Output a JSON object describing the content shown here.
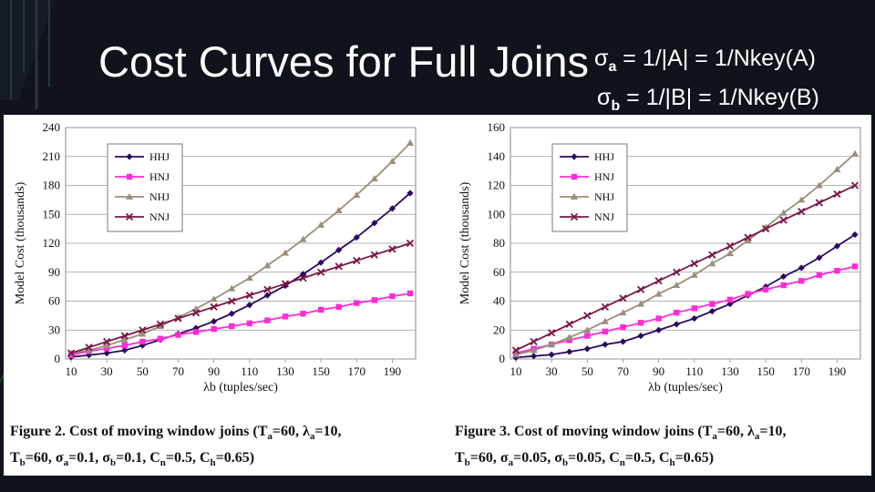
{
  "slide": {
    "title": "Cost Curves for Full Joins",
    "formula_a": {
      "sigma": "σ",
      "sub": "a",
      "rest": " = 1/|A| = 1/Nkey(A)"
    },
    "formula_b": {
      "sigma": "σ",
      "sub": "b",
      "rest": " = 1/|B| = 1/Nkey(B)"
    }
  },
  "figures": [
    {
      "caption_line1": "Figure 2. Cost of moving window joins (T",
      "caption_parts": [
        "a",
        "=60, λ",
        "a",
        "=10,"
      ],
      "caption_line2_parts": [
        "T",
        "b",
        "=60, σ",
        "a",
        "=0.1, σ",
        "b",
        "=0.1, C",
        "n",
        "=0.5, C",
        "h",
        "=0.65)"
      ]
    },
    {
      "caption_line1": "Figure 3. Cost of moving window joins (T",
      "caption_parts": [
        "a",
        "=60, λ",
        "a",
        "=10,"
      ],
      "caption_line2_parts": [
        "T",
        "b",
        "=60, σ",
        "a",
        "=0.05, σ",
        "b",
        "=0.05, C",
        "n",
        "=0.5, C",
        "h",
        "=0.65)"
      ]
    }
  ],
  "chart_data": [
    {
      "type": "line",
      "title": "",
      "xlabel": "λb (tuples/sec)",
      "ylabel": "Model Cost (thousands)",
      "x": [
        10,
        20,
        30,
        40,
        50,
        60,
        70,
        80,
        90,
        100,
        110,
        120,
        130,
        140,
        150,
        160,
        170,
        180,
        190,
        200
      ],
      "xticks": [
        10,
        30,
        50,
        70,
        90,
        110,
        130,
        150,
        170,
        190
      ],
      "ylim": [
        0,
        240
      ],
      "yticks": [
        0,
        30,
        60,
        90,
        120,
        150,
        180,
        210,
        240
      ],
      "grid": "horizontal",
      "legend_position": "top-left",
      "series": [
        {
          "name": "HHJ",
          "color": "#2b0a5e",
          "marker": "diamond",
          "values": [
            2,
            4,
            6,
            9,
            14,
            20,
            26,
            32,
            39,
            47,
            56,
            66,
            76,
            88,
            100,
            113,
            126,
            141,
            156,
            172
          ]
        },
        {
          "name": "HNJ",
          "color": "#ff2bd6",
          "marker": "square",
          "values": [
            4,
            8,
            11,
            14,
            18,
            21,
            25,
            28,
            31,
            34,
            37,
            40,
            44,
            47,
            51,
            54,
            58,
            61,
            65,
            68
          ]
        },
        {
          "name": "NHJ",
          "color": "#9a8e7c",
          "marker": "triangle",
          "values": [
            6,
            9,
            14,
            20,
            26,
            34,
            43,
            52,
            62,
            73,
            84,
            97,
            110,
            124,
            139,
            154,
            170,
            187,
            205,
            224
          ]
        },
        {
          "name": "NNJ",
          "color": "#7a1848",
          "marker": "x",
          "values": [
            6,
            12,
            18,
            24,
            30,
            36,
            42,
            48,
            54,
            60,
            66,
            72,
            78,
            84,
            90,
            96,
            102,
            108,
            114,
            120
          ]
        }
      ]
    },
    {
      "type": "line",
      "title": "",
      "xlabel": "λb (tuples/sec)",
      "ylabel": "Model Cost (thousands)",
      "x": [
        10,
        20,
        30,
        40,
        50,
        60,
        70,
        80,
        90,
        100,
        110,
        120,
        130,
        140,
        150,
        160,
        170,
        180,
        190,
        200
      ],
      "xticks": [
        10,
        30,
        50,
        70,
        90,
        110,
        130,
        150,
        170,
        190
      ],
      "ylim": [
        0,
        160
      ],
      "yticks": [
        0,
        20,
        40,
        60,
        80,
        100,
        120,
        140,
        160
      ],
      "grid": "horizontal",
      "legend_position": "top-left",
      "series": [
        {
          "name": "HHJ",
          "color": "#2b0a5e",
          "marker": "diamond",
          "values": [
            1,
            2,
            3,
            5,
            7,
            10,
            12,
            16,
            20,
            24,
            28,
            33,
            38,
            44,
            50,
            57,
            63,
            70,
            78,
            86
          ]
        },
        {
          "name": "HNJ",
          "color": "#ff2bd6",
          "marker": "square",
          "values": [
            4,
            7,
            10,
            13,
            16,
            19,
            22,
            25,
            28,
            32,
            35,
            38,
            41,
            45,
            48,
            51,
            54,
            58,
            61,
            64
          ]
        },
        {
          "name": "NHJ",
          "color": "#9a8e7c",
          "marker": "triangle",
          "values": [
            3,
            6,
            10,
            15,
            20,
            26,
            32,
            38,
            45,
            51,
            58,
            66,
            73,
            82,
            91,
            101,
            110,
            120,
            131,
            142
          ]
        },
        {
          "name": "NNJ",
          "color": "#7a1848",
          "marker": "x",
          "values": [
            6,
            12,
            18,
            24,
            30,
            36,
            42,
            48,
            54,
            60,
            66,
            72,
            78,
            84,
            90,
            96,
            102,
            108,
            114,
            120
          ]
        }
      ]
    }
  ]
}
